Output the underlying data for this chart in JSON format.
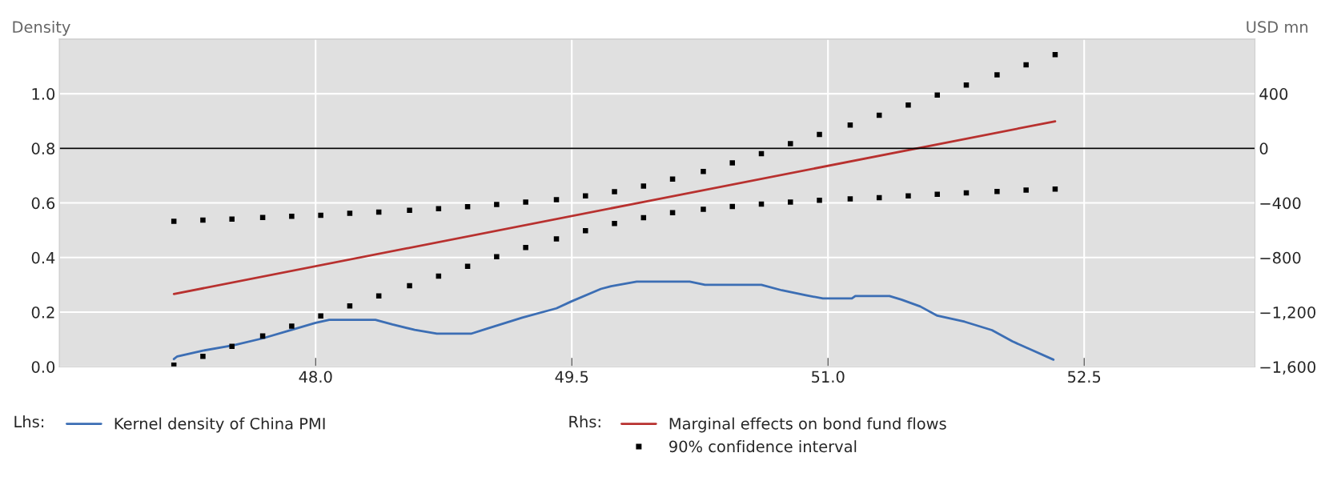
{
  "chart_data": {
    "type": "line",
    "ylabel": "Density",
    "y2label": "USD mn",
    "xlim": [
      46.5,
      53.5
    ],
    "xticks": [
      {
        "value": 48,
        "label": "48.0"
      },
      {
        "value": 49.5,
        "label": "49.5"
      },
      {
        "value": 51,
        "label": "51.0"
      },
      {
        "value": 52.5,
        "label": "52.5"
      }
    ],
    "ylim": [
      0,
      1.2
    ],
    "yticks": [
      {
        "value": 0,
        "label": "0.0"
      },
      {
        "value": 0.2,
        "label": "0.2"
      },
      {
        "value": 0.4,
        "label": "0.4"
      },
      {
        "value": 0.6,
        "label": "0.6"
      },
      {
        "value": 0.8,
        "label": "0.8"
      },
      {
        "value": 1,
        "label": "1.0"
      }
    ],
    "y2lim": [
      -1600,
      800
    ],
    "y2ticks": [
      {
        "value": -1600,
        "label": "−1,600"
      },
      {
        "value": -1200,
        "label": "−1,200"
      },
      {
        "value": -800,
        "label": "−800"
      },
      {
        "value": -400,
        "label": "−400"
      },
      0,
      400
    ],
    "grid": true,
    "legend": "bottom",
    "ref_lines": [
      {
        "axis": "y2",
        "value": 0,
        "color": "#000000",
        "line_style": "solid"
      }
    ],
    "annotations": [
      "Lhs:",
      "Rhs:"
    ],
    "series": [
      {
        "name": "Kernel density of China PMI",
        "color": "#3c6eb4",
        "axis": "y",
        "line_style": "solid",
        "x": [
          47.17,
          47.19,
          47.34,
          47.52,
          47.69,
          47.86,
          48.0,
          48.08,
          48.35,
          48.45,
          48.58,
          48.71,
          48.91,
          49.0,
          49.21,
          49.41,
          49.5,
          49.67,
          49.73,
          49.88,
          50.19,
          50.28,
          50.61,
          50.73,
          50.87,
          50.97,
          51.14,
          51.16,
          51.36,
          51.43,
          51.54,
          51.64,
          51.8,
          51.96,
          52.08,
          52.19,
          52.32
        ],
        "values": [
          0.028,
          0.038,
          0.059,
          0.079,
          0.104,
          0.135,
          0.161,
          0.172,
          0.172,
          0.155,
          0.135,
          0.121,
          0.121,
          0.139,
          0.18,
          0.214,
          0.24,
          0.285,
          0.295,
          0.312,
          0.312,
          0.3,
          0.3,
          0.28,
          0.262,
          0.25,
          0.25,
          0.259,
          0.259,
          0.246,
          0.221,
          0.187,
          0.165,
          0.134,
          0.093,
          0.062,
          0.026
        ]
      },
      {
        "name": "Marginal effects on bond fund flows",
        "color": "#b8312f",
        "axis": "y2",
        "line_style": "solid",
        "x": [
          47.17,
          52.33
        ],
        "values": [
          -1067,
          198
        ]
      },
      {
        "name": "90% confidence interval",
        "type": "scatter",
        "color": "#000000",
        "axis": "y2",
        "marker": "square",
        "x": [
          47.17,
          47.34,
          47.51,
          47.69,
          47.86,
          48.03,
          48.2,
          48.37,
          48.55,
          48.72,
          48.89,
          49.06,
          49.23,
          49.41,
          49.58,
          49.75,
          49.92,
          50.09,
          50.27,
          50.44,
          50.61,
          50.78,
          50.95,
          51.13,
          51.3,
          51.47,
          51.64,
          51.81,
          51.99,
          52.16,
          52.33
        ],
        "values": [
          -535,
          -526,
          -518,
          -507,
          -498,
          -490,
          -476,
          -467,
          -454,
          -442,
          -428,
          -411,
          -394,
          -376,
          -349,
          -317,
          -276,
          -225,
          -169,
          -107,
          -39,
          34,
          101,
          171,
          243,
          317,
          391,
          464,
          539,
          612,
          687
        ]
      },
      {
        "type": "scatter",
        "color": "#000000",
        "axis": "y2",
        "marker": "square",
        "x": [
          47.17,
          47.34,
          47.51,
          47.69,
          47.86,
          48.03,
          48.2,
          48.37,
          48.55,
          48.72,
          48.89,
          49.06,
          49.23,
          49.41,
          49.58,
          49.75,
          49.92,
          50.09,
          50.27,
          50.44,
          50.61,
          50.78,
          50.95,
          51.13,
          51.3,
          51.47,
          51.64,
          51.81,
          51.99,
          52.16,
          52.33
        ],
        "values": [
          -1588,
          -1524,
          -1451,
          -1375,
          -1302,
          -1228,
          -1154,
          -1081,
          -1007,
          -936,
          -864,
          -794,
          -727,
          -663,
          -603,
          -551,
          -508,
          -472,
          -446,
          -426,
          -408,
          -394,
          -380,
          -370,
          -361,
          -349,
          -337,
          -326,
          -316,
          -306,
          -298
        ]
      }
    ]
  }
}
